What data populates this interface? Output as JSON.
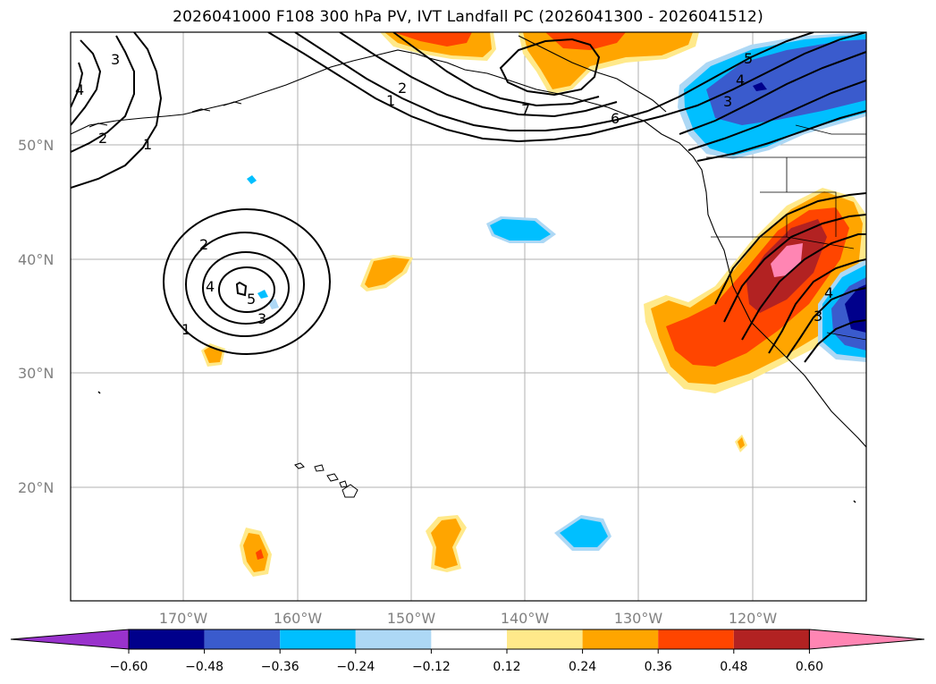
{
  "title": "2026041000 F108 300 hPa PV, IVT Landfall PC (2026041300 - 2026041512)",
  "colors": {
    "purple": "#9932cc",
    "navy": "#00008b",
    "royal": "#3a5bcd",
    "cyan": "#00bfff",
    "lightblue": "#add8f5",
    "white": "#ffffff",
    "lightyellow": "#ffe98a",
    "orange": "#ffa500",
    "redorange": "#ff4500",
    "firebrick": "#b22222",
    "pink": "#ff85b3"
  },
  "lat_labels": [
    "50°N",
    "40°N",
    "30°N",
    "20°N"
  ],
  "lon_labels": [
    "170°W",
    "160°W",
    "150°W",
    "140°W",
    "130°W",
    "120°W"
  ],
  "colorbar": {
    "ticks": [
      "−0.60",
      "−0.48",
      "−0.36",
      "−0.24",
      "−0.12",
      "0.12",
      "0.24",
      "0.36",
      "0.48",
      "0.60"
    ]
  },
  "contour_labels": {
    "nw_3": "3",
    "nw_4": "4",
    "nw_2": "2",
    "nw_1": "1",
    "low_2": "2",
    "low_4": "4",
    "low_5": "5",
    "low_3": "3",
    "low_1": "1",
    "ak_2": "2",
    "ak_1": "1",
    "ak_7": "7",
    "ak_6": "6",
    "ne_5": "5",
    "ne_4": "4",
    "ne_3": "3",
    "ca_3": "3",
    "ca_4": "4"
  }
}
